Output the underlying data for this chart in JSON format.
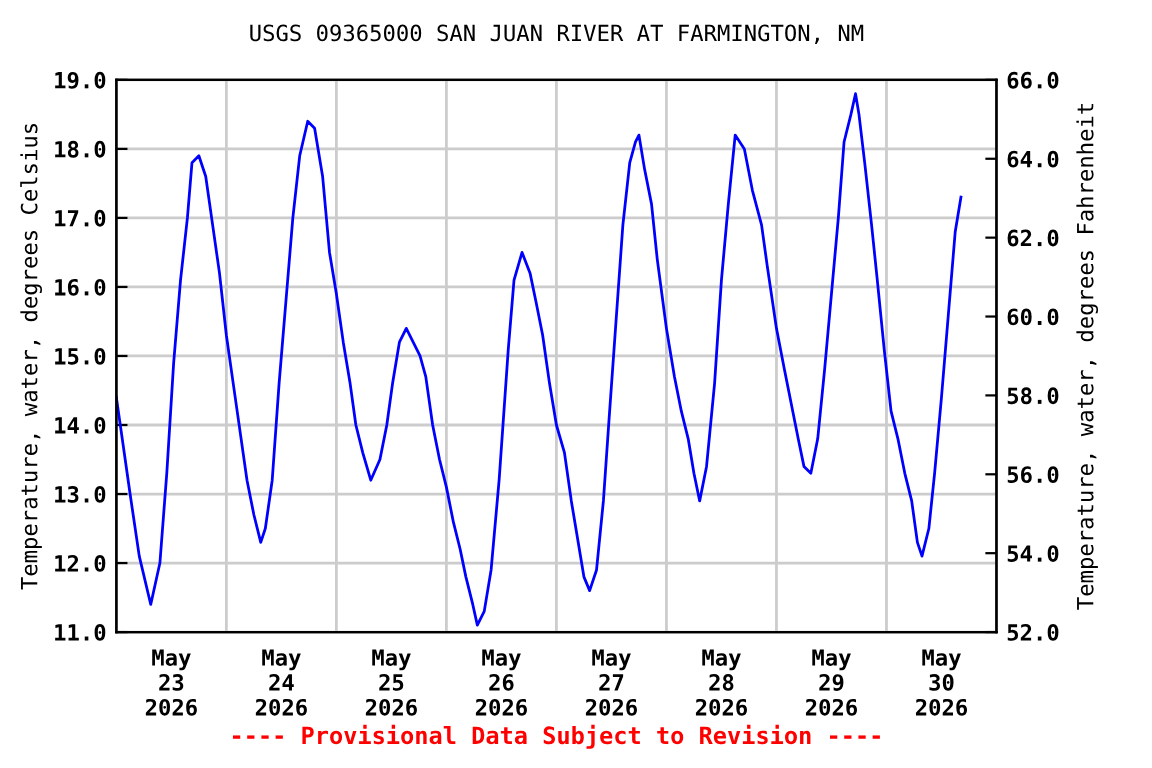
{
  "chart_data": {
    "type": "line",
    "title": "USGS 09365000 SAN JUAN RIVER AT FARMINGTON, NM",
    "ylabel": "Temperature, water, degrees Celsius",
    "y2label": "Temperature, water, degrees Fahrenheit",
    "annotations": [
      "---- Provisional Data Subject to Revision ----"
    ],
    "x": [
      "2026-05-23T00:00",
      "2026-05-23T03:00",
      "2026-05-23T05:00",
      "2026-05-23T07:30",
      "2026-05-23T09:30",
      "2026-05-23T11:00",
      "2026-05-23T12:30",
      "2026-05-23T14:00",
      "2026-05-23T15:30",
      "2026-05-23T16:30",
      "2026-05-23T18:00",
      "2026-05-23T19:30",
      "2026-05-23T21:00",
      "2026-05-23T22:30",
      "2026-05-24T00:00",
      "2026-05-24T01:30",
      "2026-05-24T03:00",
      "2026-05-24T04:30",
      "2026-05-24T06:00",
      "2026-05-24T07:30",
      "2026-05-24T08:30",
      "2026-05-24T10:00",
      "2026-05-24T11:30",
      "2026-05-24T13:00",
      "2026-05-24T14:30",
      "2026-05-24T16:00",
      "2026-05-24T17:45",
      "2026-05-24T19:15",
      "2026-05-24T21:00",
      "2026-05-24T22:30",
      "2026-05-25T00:00",
      "2026-05-25T01:30",
      "2026-05-25T03:00",
      "2026-05-25T04:15",
      "2026-05-25T05:45",
      "2026-05-25T07:30",
      "2026-05-25T09:30",
      "2026-05-25T11:00",
      "2026-05-25T12:15",
      "2026-05-25T13:45",
      "2026-05-25T15:15",
      "2026-05-25T16:45",
      "2026-05-25T18:15",
      "2026-05-25T19:30",
      "2026-05-25T21:00",
      "2026-05-25T22:30",
      "2026-05-26T00:00",
      "2026-05-26T01:30",
      "2026-05-26T03:00",
      "2026-05-26T04:15",
      "2026-05-26T05:45",
      "2026-05-26T06:45",
      "2026-05-26T08:15",
      "2026-05-26T09:45",
      "2026-05-26T11:30",
      "2026-05-26T13:30",
      "2026-05-26T14:45",
      "2026-05-26T16:30",
      "2026-05-26T18:15",
      "2026-05-26T19:30",
      "2026-05-26T21:00",
      "2026-05-26T22:30",
      "2026-05-27T00:00",
      "2026-05-27T01:45",
      "2026-05-27T03:15",
      "2026-05-27T04:45",
      "2026-05-27T06:00",
      "2026-05-27T07:15",
      "2026-05-27T08:45",
      "2026-05-27T10:15",
      "2026-05-27T11:30",
      "2026-05-27T13:00",
      "2026-05-27T14:30",
      "2026-05-27T16:00",
      "2026-05-27T17:15",
      "2026-05-27T18:00",
      "2026-05-27T19:15",
      "2026-05-27T20:45",
      "2026-05-27T22:00",
      "2026-05-28T00:00",
      "2026-05-28T01:45",
      "2026-05-28T03:15",
      "2026-05-28T04:45",
      "2026-05-28T06:00",
      "2026-05-28T07:15",
      "2026-05-28T08:45",
      "2026-05-28T10:30",
      "2026-05-28T12:00",
      "2026-05-28T13:30",
      "2026-05-28T15:00",
      "2026-05-28T17:00",
      "2026-05-28T18:45",
      "2026-05-28T20:45",
      "2026-05-28T22:00",
      "2026-05-29T00:00",
      "2026-05-29T01:45",
      "2026-05-29T03:15",
      "2026-05-29T04:45",
      "2026-05-29T06:00",
      "2026-05-29T07:30",
      "2026-05-29T09:00",
      "2026-05-29T10:30",
      "2026-05-29T12:00",
      "2026-05-29T13:30",
      "2026-05-29T14:45",
      "2026-05-29T16:15",
      "2026-05-29T17:15",
      "2026-05-29T18:00",
      "2026-05-29T19:15",
      "2026-05-29T20:45",
      "2026-05-29T22:00",
      "2026-05-29T23:30",
      "2026-05-30T01:00",
      "2026-05-30T02:30",
      "2026-05-30T04:00",
      "2026-05-30T05:30",
      "2026-05-30T06:45",
      "2026-05-30T07:45",
      "2026-05-30T09:15",
      "2026-05-30T10:30",
      "2026-05-30T12:00",
      "2026-05-30T13:30",
      "2026-05-30T15:00",
      "2026-05-30T16:15"
    ],
    "series": [
      {
        "color": "#0000ff",
        "values": [
          14.4,
          13.0,
          12.1,
          11.4,
          12.0,
          13.3,
          14.9,
          16.1,
          17.0,
          17.8,
          17.9,
          17.6,
          16.9,
          16.2,
          15.3,
          14.6,
          13.9,
          13.2,
          12.7,
          12.3,
          12.5,
          13.2,
          14.6,
          15.8,
          17.0,
          17.9,
          18.4,
          18.3,
          17.6,
          16.5,
          15.9,
          15.2,
          14.6,
          14.0,
          13.6,
          13.2,
          13.5,
          14.0,
          14.6,
          15.2,
          15.4,
          15.2,
          15.0,
          14.7,
          14.0,
          13.5,
          13.1,
          12.6,
          12.2,
          11.8,
          11.4,
          11.1,
          11.3,
          11.9,
          13.2,
          15.1,
          16.1,
          16.5,
          16.2,
          15.8,
          15.3,
          14.6,
          14.0,
          13.6,
          12.9,
          12.3,
          11.8,
          11.6,
          11.9,
          12.9,
          14.1,
          15.5,
          16.9,
          17.8,
          18.1,
          18.2,
          17.7,
          17.2,
          16.4,
          15.4,
          14.7,
          14.2,
          13.8,
          13.3,
          12.9,
          13.4,
          14.6,
          16.1,
          17.2,
          18.2,
          18.0,
          17.4,
          16.9,
          16.3,
          15.4,
          14.8,
          14.3,
          13.8,
          13.4,
          13.3,
          13.8,
          14.8,
          15.9,
          17.0,
          18.1,
          18.5,
          18.8,
          18.5,
          17.8,
          16.9,
          16.1,
          15.1,
          14.2,
          13.8,
          13.3,
          12.9,
          12.3,
          12.1,
          12.5,
          13.3,
          14.4,
          15.6,
          16.8,
          17.3
        ]
      }
    ],
    "xlim": [
      "2026-05-23T00:00",
      "2026-05-31T00:00"
    ],
    "xticks": [
      {
        "value": "2026-05-23T00:00",
        "label": null
      },
      {
        "value": "2026-05-23T12:00",
        "label": "May\n23\n2026"
      },
      {
        "value": "2026-05-24T00:00",
        "label": null
      },
      {
        "value": "2026-05-24T12:00",
        "label": "May\n24\n2026"
      },
      {
        "value": "2026-05-25T00:00",
        "label": null
      },
      {
        "value": "2026-05-25T12:00",
        "label": "May\n25\n2026"
      },
      {
        "value": "2026-05-26T00:00",
        "label": null
      },
      {
        "value": "2026-05-26T12:00",
        "label": "May\n26\n2026"
      },
      {
        "value": "2026-05-27T00:00",
        "label": null
      },
      {
        "value": "2026-05-27T12:00",
        "label": "May\n27\n2026"
      },
      {
        "value": "2026-05-28T00:00",
        "label": null
      },
      {
        "value": "2026-05-28T12:00",
        "label": "May\n28\n2026"
      },
      {
        "value": "2026-05-29T00:00",
        "label": null
      },
      {
        "value": "2026-05-29T12:00",
        "label": "May\n29\n2026"
      },
      {
        "value": "2026-05-30T00:00",
        "label": null
      },
      {
        "value": "2026-05-30T12:00",
        "label": "May\n30\n2026"
      },
      {
        "value": "2026-05-31T00:00",
        "label": null
      }
    ],
    "ylim": [
      11,
      19
    ],
    "yticks": [
      {
        "value": 11,
        "label": "11.0"
      },
      {
        "value": 12,
        "label": "12.0"
      },
      {
        "value": 13,
        "label": "13.0"
      },
      {
        "value": 14,
        "label": "14.0"
      },
      {
        "value": 15,
        "label": "15.0"
      },
      {
        "value": 16,
        "label": "16.0"
      },
      {
        "value": 17,
        "label": "17.0"
      },
      {
        "value": 18,
        "label": "18.0"
      },
      {
        "value": 19,
        "label": "19.0"
      }
    ],
    "y2lim": [
      52,
      66
    ],
    "y2ticks": [
      {
        "value": 52,
        "label": "52.0"
      },
      {
        "value": 54,
        "label": "54.0"
      },
      {
        "value": 56,
        "label": "56.0"
      },
      {
        "value": 58,
        "label": "58.0"
      },
      {
        "value": 60,
        "label": "60.0"
      },
      {
        "value": 62,
        "label": "62.0"
      },
      {
        "value": 64,
        "label": "64.0"
      },
      {
        "value": 66,
        "label": "66.0"
      }
    ],
    "grid": true,
    "marker": "none",
    "line_style": "solid"
  }
}
